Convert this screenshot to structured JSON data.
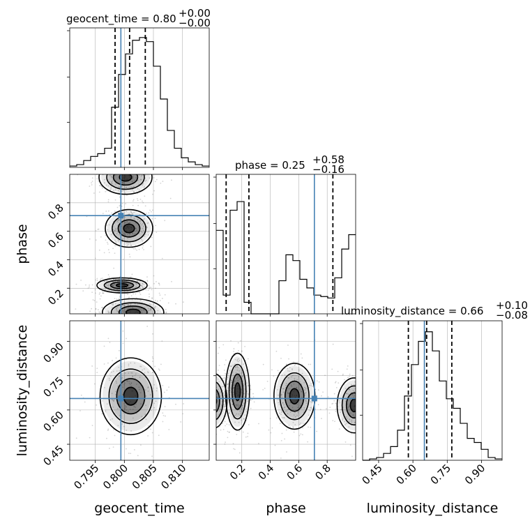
{
  "colors": {
    "truth": "#4682b4",
    "hist": "#000000",
    "grid": "#b0b0b0",
    "scatter": "#808080"
  },
  "chart_data": {
    "type": "corner",
    "parameters": [
      "geocent_time",
      "phase",
      "luminosity_distance"
    ],
    "truths": {
      "geocent_time": 0.7994,
      "phase": 0.71,
      "luminosity_distance": 0.65
    },
    "titles": [
      {
        "param": "geocent_time",
        "median": "0.80",
        "plus": "+0.00",
        "minus": "−0.00"
      },
      {
        "param": "phase",
        "median": "0.25",
        "plus": "+0.58",
        "minus": "−0.16"
      },
      {
        "param": "luminosity_distance",
        "median": "0.66",
        "plus": "+0.10",
        "minus": "−0.08"
      }
    ],
    "axis_labels": {
      "geocent_time": "geocent_time",
      "phase": "phase",
      "luminosity_distance": "luminosity_distance"
    },
    "ranges": {
      "geocent_time": [
        0.7906,
        0.8146
      ],
      "phase": [
        0.02,
        1.0
      ],
      "luminosity_distance": [
        0.38,
        0.99
      ]
    },
    "ticks": {
      "geocent_time": {
        "values": [
          0.795,
          0.8,
          0.805,
          0.81
        ],
        "labels": [
          "0.795",
          "0.800",
          "0.805",
          "0.810"
        ]
      },
      "phase": {
        "values": [
          0.2,
          0.4,
          0.6,
          0.8
        ],
        "labels": [
          "0.2",
          "0.4",
          "0.6",
          "0.8"
        ]
      },
      "luminosity_distance": {
        "values": [
          0.45,
          0.6,
          0.75,
          0.9
        ],
        "labels": [
          "0.45",
          "0.60",
          "0.75",
          "0.90"
        ]
      }
    },
    "histograms": {
      "geocent_time": {
        "quantiles": [
          0.7984,
          0.8009,
          0.8036
        ],
        "counts": [
          0.01,
          0.02,
          0.05,
          0.08,
          0.1,
          0.14,
          0.44,
          0.68,
          0.83,
          0.93,
          0.95,
          0.92,
          0.74,
          0.5,
          0.27,
          0.14,
          0.07,
          0.04,
          0.02,
          0.01
        ],
        "ymax": 1.0
      },
      "phase": {
        "quantiles": [
          0.09,
          0.25,
          0.84
        ],
        "counts": [
          0.58,
          0.13,
          0.72,
          0.78,
          0.08,
          0.0,
          0.0,
          0.0,
          0.0,
          0.23,
          0.41,
          0.37,
          0.24,
          0.18,
          0.13,
          0.12,
          0.11,
          0.25,
          0.45,
          0.55
        ],
        "ymax": 0.95
      },
      "luminosity_distance": {
        "quantiles": [
          0.58,
          0.66,
          0.77
        ],
        "counts": [
          0.0,
          0.01,
          0.02,
          0.05,
          0.1,
          0.22,
          0.47,
          0.7,
          0.87,
          0.94,
          0.8,
          0.58,
          0.45,
          0.38,
          0.27,
          0.16,
          0.13,
          0.08,
          0.02,
          0.01
        ],
        "ymax": 1.0
      }
    },
    "joint": [
      {
        "x": "geocent_time",
        "y": "phase",
        "modes": [
          {
            "cx": 0.8002,
            "cy": 0.98,
            "sx": 0.0019,
            "sy": 0.05
          },
          {
            "cx": 0.8008,
            "cy": 0.62,
            "sx": 0.0017,
            "sy": 0.055
          },
          {
            "cx": 0.7996,
            "cy": 0.22,
            "sx": 0.0018,
            "sy": 0.022
          },
          {
            "cx": 0.8015,
            "cy": 0.03,
            "sx": 0.0022,
            "sy": 0.04
          }
        ]
      },
      {
        "x": "geocent_time",
        "y": "luminosity_distance",
        "modes": [
          {
            "cx": 0.8011,
            "cy": 0.66,
            "sx": 0.0022,
            "sy": 0.07
          }
        ]
      },
      {
        "x": "phase",
        "y": "luminosity_distance",
        "modes": [
          {
            "cx": 0.0,
            "cy": 0.64,
            "sx": 0.04,
            "sy": 0.05
          },
          {
            "cx": 0.17,
            "cy": 0.68,
            "sx": 0.035,
            "sy": 0.07
          },
          {
            "cx": 0.57,
            "cy": 0.66,
            "sx": 0.06,
            "sy": 0.06
          },
          {
            "cx": 0.99,
            "cy": 0.62,
            "sx": 0.05,
            "sy": 0.05
          }
        ]
      }
    ]
  }
}
